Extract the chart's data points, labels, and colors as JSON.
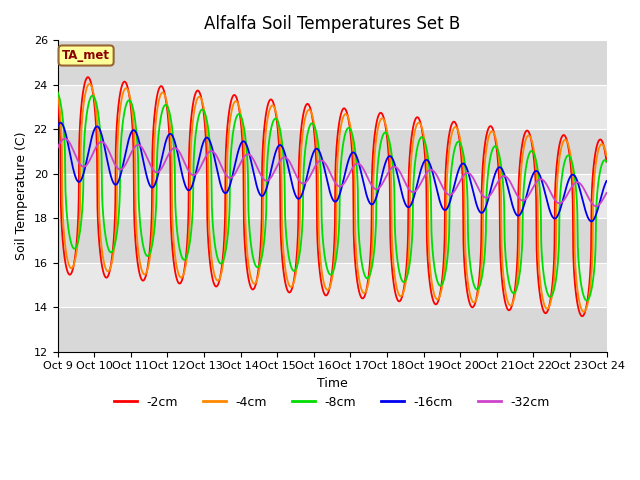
{
  "title": "Alfalfa Soil Temperatures Set B",
  "xlabel": "Time",
  "ylabel": "Soil Temperature (C)",
  "ylim": [
    12,
    26
  ],
  "xlim": [
    0,
    360
  ],
  "annotation": "TA_met",
  "background_color": "#f0f0f0",
  "plot_bg_color": "#e8e8e8",
  "grid_color": "#ffffff",
  "tick_labels": [
    "Oct 9",
    "Oct 10",
    "Oct 11",
    "Oct 12",
    "Oct 13",
    "Oct 14",
    "Oct 15",
    "Oct 16",
    "Oct 17",
    "Oct 18",
    "Oct 19",
    "Oct 20",
    "Oct 21",
    "Oct 22",
    "Oct 23",
    "Oct 24"
  ],
  "series_colors": {
    "-2cm": "#ff0000",
    "-4cm": "#ff8800",
    "-8cm": "#00dd00",
    "-16cm": "#0000ee",
    "-32cm": "#cc44cc"
  },
  "series_linewidths": {
    "-2cm": 1.3,
    "-4cm": 1.3,
    "-8cm": 1.3,
    "-16cm": 1.3,
    "-32cm": 1.3
  },
  "band1_color": "#d8d8d8",
  "band2_color": "#e8e8e8"
}
